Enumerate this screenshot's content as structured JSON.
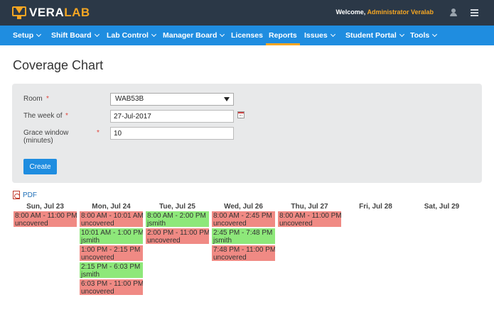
{
  "brand": {
    "part1": "VERA",
    "part2": "LAB"
  },
  "header": {
    "welcome_prefix": "Welcome, ",
    "user_name": "Administrator Veralab"
  },
  "nav": [
    {
      "label": "Setup",
      "dropdown": true
    },
    {
      "label": "Shift Board",
      "dropdown": true
    },
    {
      "label": "Lab Control",
      "dropdown": true
    },
    {
      "label": "Manager Board",
      "dropdown": true
    },
    {
      "label": "Licenses",
      "dropdown": false
    },
    {
      "label": "Reports",
      "dropdown": false,
      "active": true
    },
    {
      "label": "Issues",
      "dropdown": true
    },
    {
      "label": "Student Portal",
      "dropdown": true
    },
    {
      "label": "Tools",
      "dropdown": true
    }
  ],
  "page": {
    "title": "Coverage Chart"
  },
  "form": {
    "room_label": "Room",
    "room_value": "WAB53B",
    "week_label": "The week of",
    "week_value": "27-Jul-2017",
    "grace_label_line1": "Grace window",
    "grace_label_line2": "(minutes)",
    "grace_value": "10",
    "required_mark": "*",
    "create_label": "Create"
  },
  "pdf_label": "PDF",
  "days": [
    "Sun, Jul 23",
    "Mon, Jul 24",
    "Tue, Jul 25",
    "Wed, Jul 26",
    "Thu, Jul 27",
    "Fri, Jul 28",
    "Sat, Jul 29"
  ],
  "colors": {
    "uncovered": "#f08a84",
    "covered": "#8ee87a",
    "nav": "#1f8de0",
    "topbar": "#2b3847",
    "accent": "#f5a623"
  },
  "shifts": [
    {
      "day": 0,
      "time": "8:00 AM - 11:00 PM",
      "who": "uncovered",
      "status": "uncovered"
    },
    {
      "day": 1,
      "time": "8:00 AM - 10:01 AM",
      "who": "uncovered",
      "status": "uncovered"
    },
    {
      "day": 1,
      "time": "10:01 AM - 1:00 PM",
      "who": "jsmith",
      "status": "covered"
    },
    {
      "day": 1,
      "time": "1:00 PM - 2:15 PM",
      "who": "uncovered",
      "status": "uncovered"
    },
    {
      "day": 1,
      "time": "2:15 PM - 6:03 PM",
      "who": "jsmith",
      "status": "covered"
    },
    {
      "day": 1,
      "time": "6:03 PM - 11:00 PM",
      "who": "uncovered",
      "status": "uncovered"
    },
    {
      "day": 2,
      "time": "8:00 AM - 2:00 PM",
      "who": "jsmith",
      "status": "covered"
    },
    {
      "day": 2,
      "time": "2:00 PM - 11:00 PM",
      "who": "uncovered",
      "status": "uncovered"
    },
    {
      "day": 3,
      "time": "8:00 AM - 2:45 PM",
      "who": "uncovered",
      "status": "uncovered"
    },
    {
      "day": 3,
      "time": "2:45 PM - 7:48 PM",
      "who": "jsmith",
      "status": "covered"
    },
    {
      "day": 3,
      "time": "7:48 PM - 11:00 PM",
      "who": "uncovered",
      "status": "uncovered"
    },
    {
      "day": 4,
      "time": "8:00 AM - 11:00 PM",
      "who": "uncovered",
      "status": "uncovered"
    }
  ]
}
